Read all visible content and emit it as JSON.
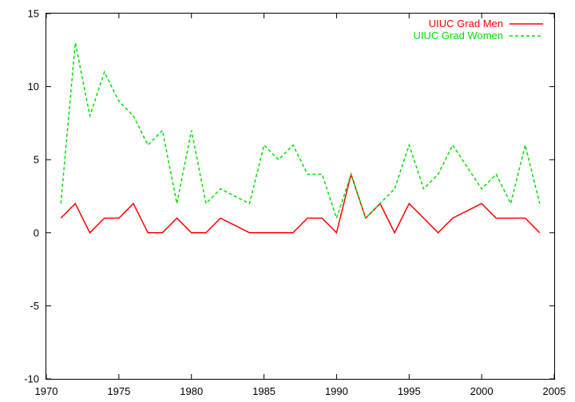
{
  "chart_data": {
    "type": "line",
    "title": "",
    "xlabel": "",
    "ylabel": "",
    "xlim": [
      1970,
      2005
    ],
    "ylim": [
      -10,
      15
    ],
    "xticks": [
      1970,
      1975,
      1980,
      1985,
      1990,
      1995,
      2000,
      2005
    ],
    "yticks": [
      -10,
      -5,
      0,
      5,
      10,
      15
    ],
    "grid": false,
    "legend_position": "top-right",
    "x": [
      1971,
      1972,
      1973,
      1974,
      1975,
      1976,
      1977,
      1978,
      1979,
      1980,
      1981,
      1982,
      1983,
      1984,
      1985,
      1986,
      1987,
      1988,
      1989,
      1990,
      1991,
      1992,
      1993,
      1994,
      1995,
      1996,
      1997,
      1998,
      1999,
      2000,
      2001,
      2002,
      2003,
      2004
    ],
    "series": [
      {
        "name": "UIUC Grad Men",
        "color": "#ff0000",
        "dash": "solid",
        "values": [
          1,
          2,
          0,
          1,
          1,
          2,
          0,
          0,
          1,
          0,
          0,
          1,
          0.5,
          0,
          0,
          0,
          0,
          1,
          1,
          0,
          4,
          1,
          2,
          0,
          2,
          1,
          0,
          1,
          1.5,
          2,
          1,
          1,
          1,
          0
        ]
      },
      {
        "name": "UIUC Grad Women",
        "color": "#00e000",
        "dash": "dashed",
        "values": [
          2,
          13,
          8,
          11,
          9,
          8,
          6,
          7,
          2,
          7,
          2,
          3,
          2.5,
          2,
          6,
          5,
          6,
          4,
          4,
          1,
          4,
          1,
          2,
          3,
          6,
          3,
          4,
          6,
          4.5,
          3,
          4,
          2,
          6,
          2
        ]
      }
    ]
  }
}
